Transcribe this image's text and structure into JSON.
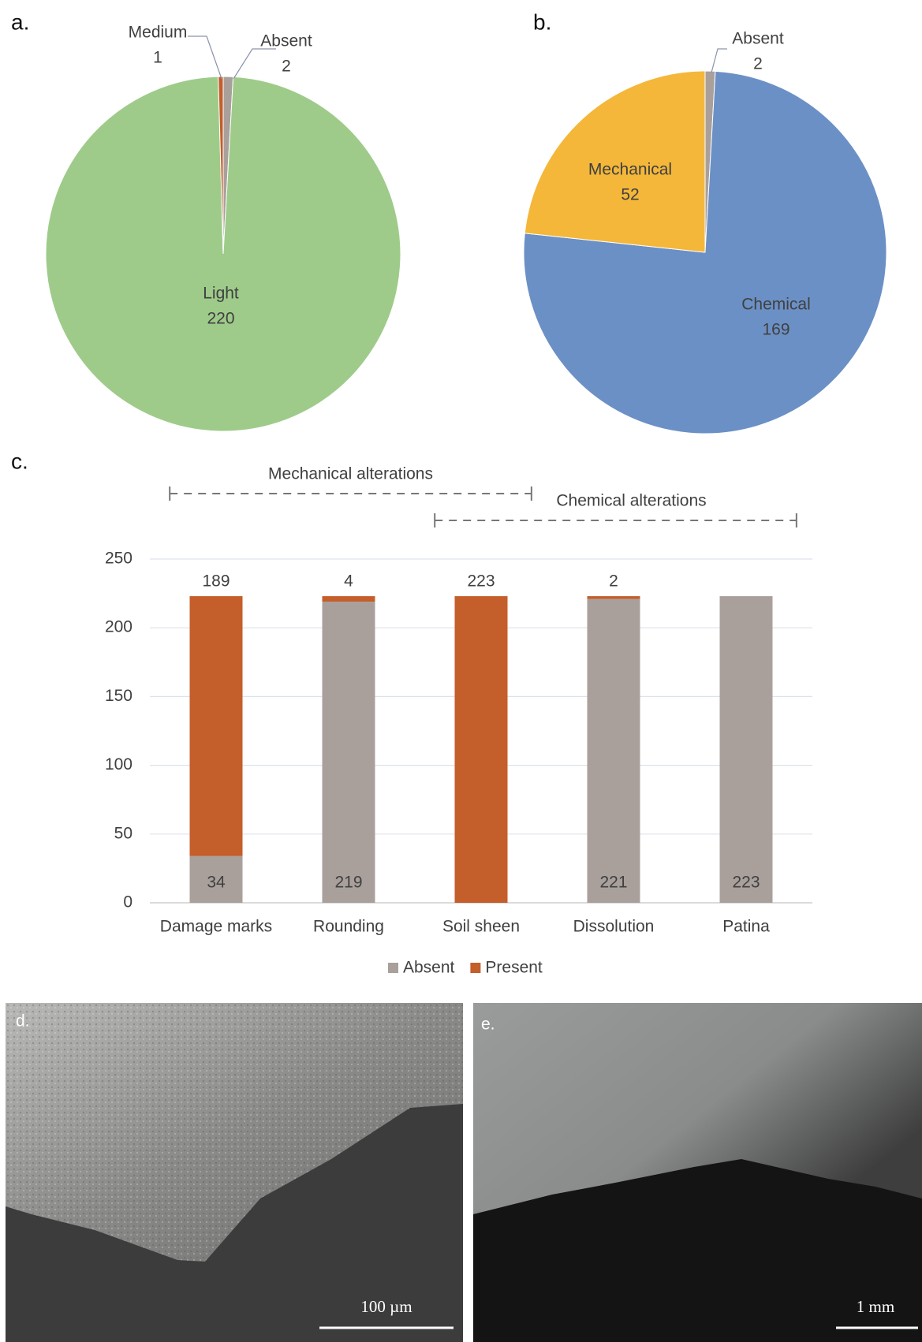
{
  "chart_data": [
    {
      "type": "pie",
      "panel": "a.",
      "categories": [
        "Absent",
        "Light",
        "Medium"
      ],
      "values": [
        2,
        220,
        1
      ],
      "colors": [
        "#a9a09c",
        "#9ecb8a",
        "#c45e2a"
      ]
    },
    {
      "type": "pie",
      "panel": "b.",
      "categories": [
        "Absent",
        "Chemical",
        "Mechanical"
      ],
      "values": [
        2,
        169,
        52
      ],
      "colors": [
        "#a9a09c",
        "#6b90c6",
        "#f4b73a"
      ]
    },
    {
      "type": "bar",
      "stacked": true,
      "panel": "c.",
      "categories": [
        "Damage marks",
        "Rounding",
        "Soil sheen",
        "Dissolution",
        "Patina"
      ],
      "series": [
        {
          "name": "Absent",
          "color": "#a9a09c",
          "values": [
            34,
            219,
            0,
            221,
            223
          ]
        },
        {
          "name": "Present",
          "color": "#c45e2a",
          "values": [
            189,
            4,
            223,
            2,
            0
          ]
        }
      ],
      "ylim": [
        0,
        250
      ],
      "yticks": [
        0,
        50,
        100,
        150,
        200,
        250
      ],
      "grid": true,
      "legend": "bottom",
      "annotations": [
        {
          "text": "Mechanical alterations",
          "span": [
            "Damage marks",
            "Soil sheen"
          ]
        },
        {
          "text": "Chemical alterations",
          "span": [
            "Soil sheen",
            "Patina"
          ]
        }
      ]
    }
  ],
  "images": [
    {
      "label": "d.",
      "scale_bar": "100 µm"
    },
    {
      "label": "e.",
      "scale_bar": "1 mm"
    }
  ]
}
